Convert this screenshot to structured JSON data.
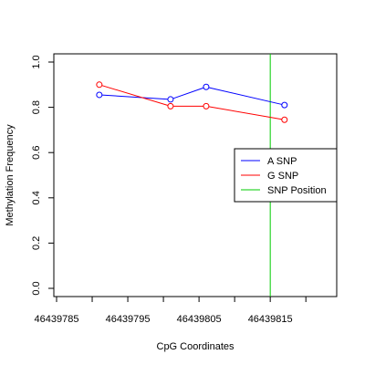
{
  "chart_data": {
    "type": "line",
    "xlabel": "CpG Coordinates",
    "ylabel": "Methylation Frequency",
    "xlim": [
      46439785,
      46439821
    ],
    "ylim": [
      0,
      1.0
    ],
    "x_ticks": [
      46439785,
      46439795,
      46439805,
      46439815
    ],
    "x_tick_labels": [
      "46439785",
      "46439795",
      "46439805",
      "46439815"
    ],
    "y_ticks": [
      0.0,
      0.2,
      0.4,
      0.6,
      0.8,
      1.0
    ],
    "y_tick_labels": [
      "0.0",
      "0.2",
      "0.4",
      "0.6",
      "0.8",
      "1.0"
    ],
    "series": [
      {
        "name": "A SNP",
        "color": "#0000ff",
        "points": [
          {
            "x": 46439791,
            "y": 0.855
          },
          {
            "x": 46439801,
            "y": 0.835
          },
          {
            "x": 46439806,
            "y": 0.89
          },
          {
            "x": 46439817,
            "y": 0.81
          }
        ]
      },
      {
        "name": "G SNP",
        "color": "#ff0000",
        "points": [
          {
            "x": 46439791,
            "y": 0.9
          },
          {
            "x": 46439801,
            "y": 0.805
          },
          {
            "x": 46439806,
            "y": 0.805
          },
          {
            "x": 46439817,
            "y": 0.745
          }
        ]
      }
    ],
    "vlines": [
      {
        "name": "SNP Position",
        "x": 46439815,
        "color": "#00cc00"
      }
    ],
    "legend": {
      "position": "right",
      "entries": [
        {
          "label": "A SNP",
          "color": "#0000ff"
        },
        {
          "label": "G SNP",
          "color": "#ff0000"
        },
        {
          "label": "SNP Position",
          "color": "#00cc00"
        }
      ]
    },
    "grid": false
  }
}
